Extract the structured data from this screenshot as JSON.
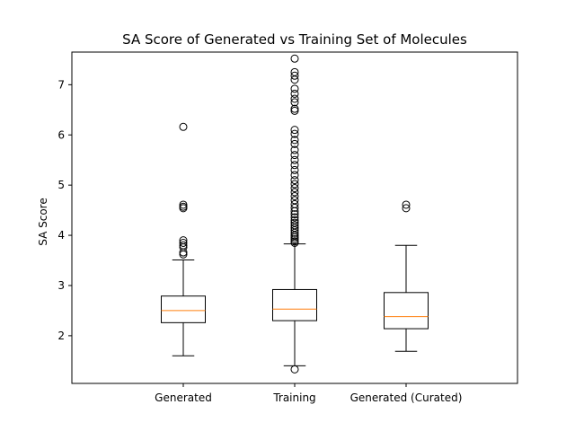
{
  "chart_data": {
    "type": "box",
    "title": "SA Score of Generated vs Training Set of Molecules",
    "xlabel": "",
    "ylabel": "SA Score",
    "ylim": [
      1.05,
      7.65
    ],
    "yticks": [
      2,
      3,
      4,
      5,
      6,
      7
    ],
    "categories": [
      "Generated",
      "Training",
      "Generated (Curated)"
    ],
    "boxes": [
      {
        "category": "Generated",
        "whisker_low": 1.6,
        "q1": 2.26,
        "median": 2.5,
        "q3": 2.79,
        "whisker_high": 3.51,
        "outliers": [
          3.62,
          3.66,
          3.76,
          3.8,
          3.85,
          3.9,
          4.54,
          4.57,
          4.61,
          6.16
        ]
      },
      {
        "category": "Training",
        "whisker_low": 1.4,
        "q1": 2.3,
        "median": 2.53,
        "q3": 2.92,
        "whisker_high": 3.83,
        "outliers": [
          1.33,
          3.85,
          3.88,
          3.92,
          3.96,
          4.0,
          4.05,
          4.1,
          4.15,
          4.2,
          4.25,
          4.3,
          4.36,
          4.42,
          4.48,
          4.55,
          4.62,
          4.7,
          4.78,
          4.86,
          4.94,
          5.02,
          5.1,
          5.2,
          5.3,
          5.4,
          5.5,
          5.6,
          5.7,
          5.82,
          5.9,
          6.02,
          6.1,
          6.48,
          6.52,
          6.65,
          6.72,
          6.82,
          6.92,
          7.1,
          7.18,
          7.25,
          7.52
        ]
      },
      {
        "category": "Generated (Curated)",
        "whisker_low": 1.69,
        "q1": 2.14,
        "median": 2.38,
        "q3": 2.86,
        "whisker_high": 3.8,
        "outliers": [
          4.54,
          4.61
        ]
      }
    ],
    "colors": {
      "box": "#000000",
      "median": "#ff7f0e",
      "outlier": "#000000"
    },
    "grid": false
  }
}
